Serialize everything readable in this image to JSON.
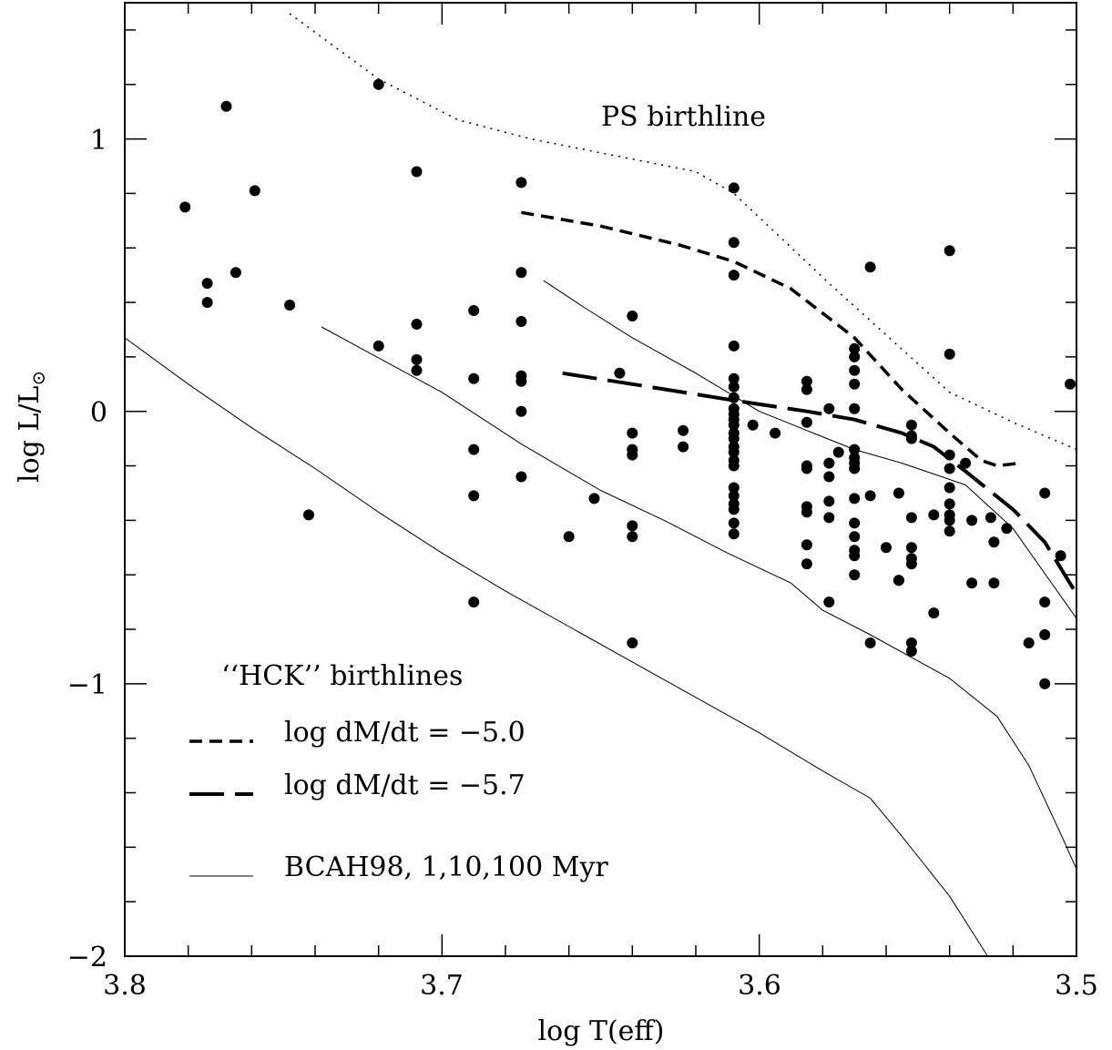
{
  "chart_data": {
    "type": "scatter",
    "xlabel": "log T(eff)",
    "ylabel": "log L/L",
    "ylabel_subscript": "⊙",
    "xlim": [
      3.8,
      3.5
    ],
    "ylim": [
      -2,
      1.5
    ],
    "x_ticks": [
      {
        "value": 3.8,
        "label": "3.8"
      },
      {
        "value": 3.7,
        "label": "3.7"
      },
      {
        "value": 3.6,
        "label": "3.6"
      },
      {
        "value": 3.5,
        "label": "3.5"
      }
    ],
    "y_ticks": [
      {
        "value": 1,
        "label": "1"
      },
      {
        "value": 0,
        "label": "0"
      },
      {
        "value": -1,
        "label": "−1"
      },
      {
        "value": -2,
        "label": "−2"
      }
    ],
    "annotations": {
      "ps_label": "PS birthline",
      "hck_title": "‘‘HCK’’ birthlines"
    },
    "legend": [
      {
        "label": "log dM/dt = −5.0",
        "style": "short-dash"
      },
      {
        "label": "log dM/dt = −5.7",
        "style": "long-dash"
      },
      {
        "label": "BCAH98, 1,10,100 Myr",
        "style": "thin-solid"
      }
    ],
    "series": [
      {
        "name": "PS birthline",
        "style": "dotted",
        "points": [
          [
            3.748,
            1.46
          ],
          [
            3.72,
            1.22
          ],
          [
            3.695,
            1.07
          ],
          [
            3.672,
            1.0
          ],
          [
            3.62,
            0.88
          ],
          [
            3.608,
            0.8
          ],
          [
            3.578,
            0.47
          ],
          [
            3.54,
            0.07
          ],
          [
            3.52,
            -0.04
          ],
          [
            3.5,
            -0.14
          ]
        ]
      },
      {
        "name": "log dM/dt = −5.0",
        "style": "short-dash",
        "points": [
          [
            3.675,
            0.73
          ],
          [
            3.65,
            0.68
          ],
          [
            3.625,
            0.61
          ],
          [
            3.608,
            0.55
          ],
          [
            3.59,
            0.45
          ],
          [
            3.57,
            0.27
          ],
          [
            3.555,
            0.08
          ],
          [
            3.54,
            -0.08
          ],
          [
            3.53,
            -0.18
          ],
          [
            3.525,
            -0.2
          ],
          [
            3.518,
            -0.19
          ]
        ]
      },
      {
        "name": "log dM/dt = −5.7",
        "style": "long-dash",
        "points": [
          [
            3.662,
            0.14
          ],
          [
            3.64,
            0.1
          ],
          [
            3.608,
            0.04
          ],
          [
            3.585,
            0.0
          ],
          [
            3.57,
            -0.03
          ],
          [
            3.555,
            -0.08
          ],
          [
            3.545,
            -0.13
          ],
          [
            3.535,
            -0.22
          ],
          [
            3.52,
            -0.36
          ],
          [
            3.51,
            -0.48
          ],
          [
            3.5,
            -0.67
          ]
        ]
      },
      {
        "name": "BCAH98 1 Myr",
        "style": "thin-solid",
        "points": [
          [
            3.668,
            0.48
          ],
          [
            3.655,
            0.38
          ],
          [
            3.64,
            0.27
          ],
          [
            3.62,
            0.14
          ],
          [
            3.6,
            0.0
          ],
          [
            3.585,
            -0.07
          ],
          [
            3.57,
            -0.14
          ],
          [
            3.555,
            -0.19
          ],
          [
            3.545,
            -0.23
          ],
          [
            3.535,
            -0.27
          ],
          [
            3.52,
            -0.43
          ],
          [
            3.5,
            -0.76
          ]
        ]
      },
      {
        "name": "BCAH98 10 Myr",
        "style": "thin-solid",
        "points": [
          [
            3.738,
            0.31
          ],
          [
            3.7,
            0.07
          ],
          [
            3.675,
            -0.12
          ],
          [
            3.65,
            -0.29
          ],
          [
            3.63,
            -0.4
          ],
          [
            3.61,
            -0.52
          ],
          [
            3.59,
            -0.63
          ],
          [
            3.58,
            -0.73
          ],
          [
            3.565,
            -0.82
          ],
          [
            3.54,
            -0.98
          ],
          [
            3.525,
            -1.12
          ],
          [
            3.515,
            -1.3
          ],
          [
            3.505,
            -1.55
          ],
          [
            3.5,
            -1.68
          ]
        ]
      },
      {
        "name": "BCAH98 100 Myr",
        "style": "thin-solid",
        "points": [
          [
            3.8,
            0.27
          ],
          [
            3.78,
            0.1
          ],
          [
            3.76,
            -0.06
          ],
          [
            3.74,
            -0.21
          ],
          [
            3.72,
            -0.37
          ],
          [
            3.7,
            -0.52
          ],
          [
            3.68,
            -0.66
          ],
          [
            3.66,
            -0.79
          ],
          [
            3.64,
            -0.92
          ],
          [
            3.62,
            -1.05
          ],
          [
            3.6,
            -1.18
          ],
          [
            3.58,
            -1.32
          ],
          [
            3.565,
            -1.42
          ],
          [
            3.555,
            -1.56
          ],
          [
            3.54,
            -1.78
          ],
          [
            3.528,
            -2.0
          ]
        ]
      },
      {
        "name": "stars",
        "style": "dots",
        "points": [
          [
            3.781,
            0.75
          ],
          [
            3.774,
            0.47
          ],
          [
            3.774,
            0.4
          ],
          [
            3.768,
            1.12
          ],
          [
            3.765,
            0.51
          ],
          [
            3.759,
            0.81
          ],
          [
            3.748,
            0.39
          ],
          [
            3.742,
            -0.38
          ],
          [
            3.72,
            1.2
          ],
          [
            3.72,
            0.24
          ],
          [
            3.708,
            0.88
          ],
          [
            3.708,
            0.32
          ],
          [
            3.708,
            0.19
          ],
          [
            3.708,
            0.15
          ],
          [
            3.69,
            0.37
          ],
          [
            3.69,
            0.12
          ],
          [
            3.69,
            -0.14
          ],
          [
            3.69,
            -0.31
          ],
          [
            3.69,
            -0.7
          ],
          [
            3.675,
            0.84
          ],
          [
            3.675,
            0.51
          ],
          [
            3.675,
            0.33
          ],
          [
            3.675,
            0.13
          ],
          [
            3.675,
            0.11
          ],
          [
            3.675,
            0.0
          ],
          [
            3.675,
            -0.24
          ],
          [
            3.66,
            -0.46
          ],
          [
            3.652,
            -0.32
          ],
          [
            3.644,
            0.14
          ],
          [
            3.64,
            0.35
          ],
          [
            3.64,
            -0.08
          ],
          [
            3.64,
            -0.14
          ],
          [
            3.64,
            -0.16
          ],
          [
            3.64,
            -0.42
          ],
          [
            3.64,
            -0.46
          ],
          [
            3.64,
            -0.85
          ],
          [
            3.624,
            -0.07
          ],
          [
            3.624,
            -0.13
          ],
          [
            3.608,
            0.82
          ],
          [
            3.608,
            0.62
          ],
          [
            3.608,
            0.5
          ],
          [
            3.608,
            0.24
          ],
          [
            3.608,
            0.12
          ],
          [
            3.608,
            0.09
          ],
          [
            3.608,
            0.05
          ],
          [
            3.608,
            0.01
          ],
          [
            3.608,
            -0.01
          ],
          [
            3.608,
            -0.03
          ],
          [
            3.608,
            -0.05
          ],
          [
            3.608,
            -0.08
          ],
          [
            3.608,
            -0.1
          ],
          [
            3.608,
            -0.13
          ],
          [
            3.608,
            -0.15
          ],
          [
            3.608,
            -0.18
          ],
          [
            3.608,
            -0.2
          ],
          [
            3.608,
            -0.28
          ],
          [
            3.608,
            -0.31
          ],
          [
            3.608,
            -0.34
          ],
          [
            3.608,
            -0.36
          ],
          [
            3.608,
            -0.41
          ],
          [
            3.608,
            -0.45
          ],
          [
            3.602,
            -0.05
          ],
          [
            3.595,
            -0.08
          ],
          [
            3.585,
            0.11
          ],
          [
            3.585,
            0.08
          ],
          [
            3.585,
            -0.04
          ],
          [
            3.585,
            -0.2
          ],
          [
            3.585,
            -0.21
          ],
          [
            3.585,
            -0.35
          ],
          [
            3.585,
            -0.37
          ],
          [
            3.585,
            -0.49
          ],
          [
            3.585,
            -0.56
          ],
          [
            3.578,
            0.01
          ],
          [
            3.578,
            -0.19
          ],
          [
            3.578,
            -0.24
          ],
          [
            3.578,
            -0.33
          ],
          [
            3.578,
            -0.39
          ],
          [
            3.578,
            -0.7
          ],
          [
            3.575,
            -0.15
          ],
          [
            3.57,
            0.23
          ],
          [
            3.57,
            0.2
          ],
          [
            3.57,
            0.15
          ],
          [
            3.57,
            0.1
          ],
          [
            3.57,
            0.01
          ],
          [
            3.57,
            -0.14
          ],
          [
            3.57,
            -0.17
          ],
          [
            3.57,
            -0.19
          ],
          [
            3.57,
            -0.21
          ],
          [
            3.57,
            -0.32
          ],
          [
            3.57,
            -0.41
          ],
          [
            3.57,
            -0.46
          ],
          [
            3.57,
            -0.51
          ],
          [
            3.57,
            -0.53
          ],
          [
            3.57,
            -0.6
          ],
          [
            3.565,
            0.53
          ],
          [
            3.565,
            -0.31
          ],
          [
            3.565,
            -0.85
          ],
          [
            3.56,
            -0.5
          ],
          [
            3.556,
            -0.3
          ],
          [
            3.556,
            -0.62
          ],
          [
            3.556,
            -0.62
          ],
          [
            3.552,
            -0.05
          ],
          [
            3.552,
            -0.09
          ],
          [
            3.552,
            -0.1
          ],
          [
            3.552,
            -0.39
          ],
          [
            3.552,
            -0.5
          ],
          [
            3.552,
            -0.54
          ],
          [
            3.552,
            -0.56
          ],
          [
            3.552,
            -0.85
          ],
          [
            3.552,
            -0.88
          ],
          [
            3.545,
            -0.38
          ],
          [
            3.545,
            -0.74
          ],
          [
            3.54,
            0.59
          ],
          [
            3.54,
            0.21
          ],
          [
            3.54,
            -0.16
          ],
          [
            3.54,
            -0.21
          ],
          [
            3.54,
            -0.28
          ],
          [
            3.54,
            -0.34
          ],
          [
            3.54,
            -0.38
          ],
          [
            3.54,
            -0.4
          ],
          [
            3.54,
            -0.44
          ],
          [
            3.535,
            -0.19
          ],
          [
            3.533,
            -0.4
          ],
          [
            3.533,
            -0.63
          ],
          [
            3.527,
            -0.39
          ],
          [
            3.526,
            -0.48
          ],
          [
            3.526,
            -0.63
          ],
          [
            3.522,
            -0.43
          ],
          [
            3.515,
            -0.85
          ],
          [
            3.51,
            -0.3
          ],
          [
            3.51,
            -0.7
          ],
          [
            3.51,
            -0.82
          ],
          [
            3.51,
            -1.0
          ],
          [
            3.505,
            -0.53
          ],
          [
            3.502,
            0.1
          ]
        ]
      }
    ]
  }
}
